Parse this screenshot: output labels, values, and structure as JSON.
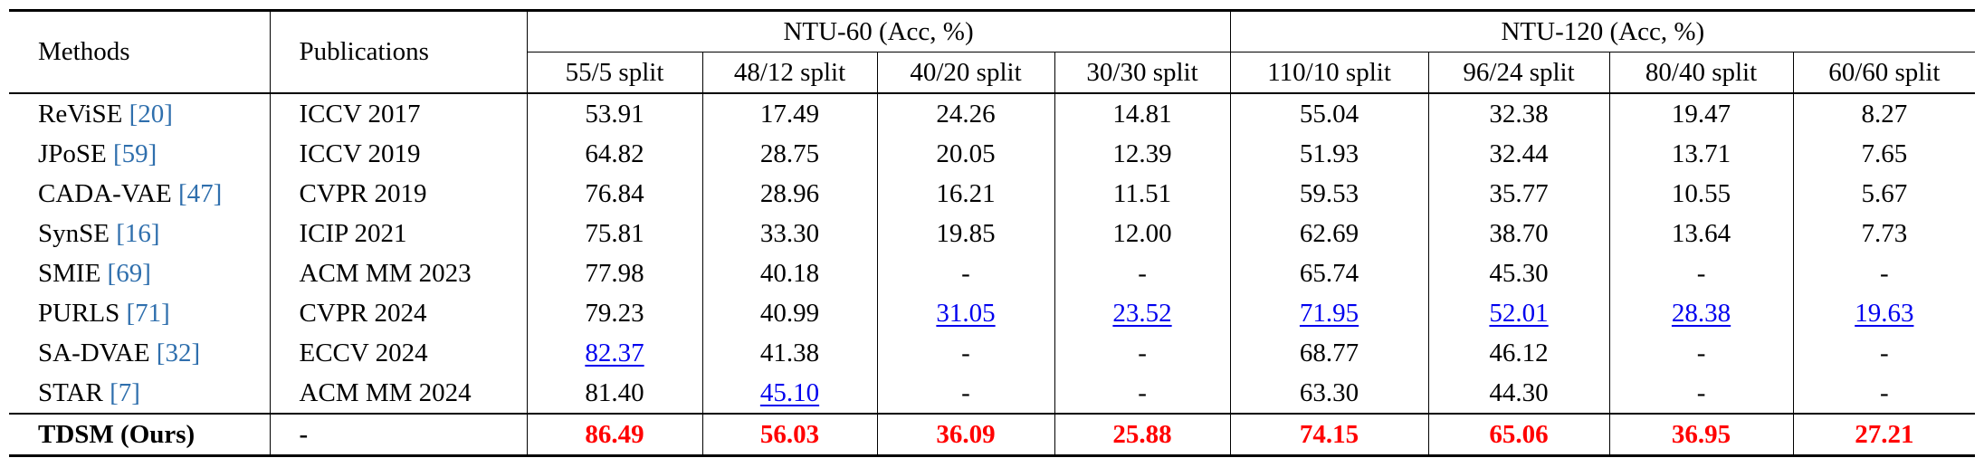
{
  "header": {
    "methods": "Methods",
    "publications": "Publications",
    "group1": "NTU-60 (Acc, %)",
    "group2": "NTU-120  (Acc, %)",
    "splits": [
      "55/5 split",
      "48/12 split",
      "40/20 split",
      "30/30 split",
      "110/10 split",
      "96/24 split",
      "80/40 split",
      "60/60 split"
    ]
  },
  "rows": [
    {
      "name": "ReViSE ",
      "ref": "[20]",
      "pub": "ICCV 2017",
      "vals": [
        "53.91",
        "17.49",
        "24.26",
        "14.81",
        "55.04",
        "32.38",
        "19.47",
        "8.27"
      ],
      "style": [
        "",
        "",
        "",
        "",
        "",
        "",
        "",
        ""
      ]
    },
    {
      "name": "JPoSE ",
      "ref": "[59]",
      "pub": "ICCV 2019",
      "vals": [
        "64.82",
        "28.75",
        "20.05",
        "12.39",
        "51.93",
        "32.44",
        "13.71",
        "7.65"
      ],
      "style": [
        "",
        "",
        "",
        "",
        "",
        "",
        "",
        ""
      ]
    },
    {
      "name": "CADA-VAE ",
      "ref": "[47]",
      "pub": "CVPR 2019",
      "vals": [
        "76.84",
        "28.96",
        "16.21",
        "11.51",
        "59.53",
        "35.77",
        "10.55",
        "5.67"
      ],
      "style": [
        "",
        "",
        "",
        "",
        "",
        "",
        "",
        ""
      ]
    },
    {
      "name": "SynSE ",
      "ref": "[16]",
      "pub": "ICIP 2021",
      "vals": [
        "75.81",
        "33.30",
        "19.85",
        "12.00",
        "62.69",
        "38.70",
        "13.64",
        "7.73"
      ],
      "style": [
        "",
        "",
        "",
        "",
        "",
        "",
        "",
        ""
      ]
    },
    {
      "name": "SMIE ",
      "ref": "[69]",
      "pub": "ACM MM 2023",
      "vals": [
        "77.98",
        "40.18",
        "-",
        "-",
        "65.74",
        "45.30",
        "-",
        "-"
      ],
      "style": [
        "",
        "",
        "",
        "",
        "",
        "",
        "",
        ""
      ]
    },
    {
      "name": "PURLS ",
      "ref": "[71]",
      "pub": "CVPR 2024",
      "vals": [
        "79.23",
        "40.99",
        "31.05",
        "23.52",
        "71.95",
        "52.01",
        "28.38",
        "19.63"
      ],
      "style": [
        "",
        "",
        "second",
        "second",
        "second",
        "second",
        "second",
        "second"
      ]
    },
    {
      "name": "SA-DVAE ",
      "ref": "[32]",
      "pub": "ECCV 2024",
      "vals": [
        "82.37",
        "41.38",
        "-",
        "-",
        "68.77",
        "46.12",
        "-",
        "-"
      ],
      "style": [
        "second",
        "",
        "",
        "",
        "",
        "",
        "",
        ""
      ]
    },
    {
      "name": "STAR ",
      "ref": "[7]",
      "pub": "ACM MM 2024",
      "vals": [
        "81.40",
        "45.10",
        "-",
        "-",
        "63.30",
        "44.30",
        "-",
        "-"
      ],
      "style": [
        "",
        "second",
        "",
        "",
        "",
        "",
        "",
        ""
      ]
    },
    {
      "name": "TDSM (Ours)",
      "ref": "",
      "pub": "-",
      "vals": [
        "86.49",
        "56.03",
        "36.09",
        "25.88",
        "74.15",
        "65.06",
        "36.95",
        "27.21"
      ],
      "style": [
        "best",
        "best",
        "best",
        "best",
        "best",
        "best",
        "best",
        "best"
      ],
      "bold": true
    }
  ]
}
